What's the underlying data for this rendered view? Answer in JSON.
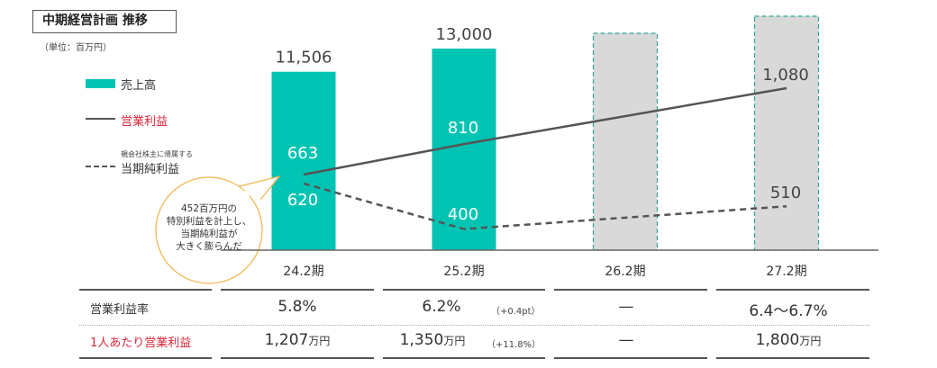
{
  "header": {
    "title": "中期経営計画 推移",
    "unit": "（単位：百万円）"
  },
  "legend": {
    "sales": "売上高",
    "operating_profit": "営業利益",
    "net_profit_prefix": "親会社株主に帰属する",
    "net_profit": "当期純利益"
  },
  "callout": {
    "lines": [
      "452百万円の",
      "特別利益を計上し、",
      "当期純利益が",
      "大きく膨らんだ"
    ]
  },
  "colors": {
    "bar": "#00c4b3",
    "plan_bar": "#d9d9d9",
    "plan_border": "#2aa89a",
    "line": "#555555",
    "accent_red": "#d9263a",
    "callout_border": "#f0b44c"
  },
  "chart_data": {
    "type": "bar",
    "title": "中期経営計画 推移",
    "ylabel": "百万円",
    "categories": [
      "24.2期",
      "25.2期",
      "26.2期",
      "27.2期"
    ],
    "series": [
      {
        "name": "売上高",
        "type": "bar",
        "values": [
          11506,
          13000,
          null,
          null
        ],
        "labels": [
          "11,506",
          "13,000",
          "",
          ""
        ]
      },
      {
        "name": "営業利益",
        "type": "line",
        "values": [
          663,
          810,
          null,
          1080
        ],
        "labels": [
          "663",
          "810",
          "",
          "1,080"
        ]
      },
      {
        "name": "親会社株主に帰属する当期純利益",
        "type": "line-dashed",
        "values": [
          620,
          400,
          null,
          510
        ],
        "labels": [
          "620",
          "400",
          "",
          "510"
        ]
      }
    ],
    "plan_categories": [
      "26.2期",
      "27.2期"
    ]
  },
  "table": {
    "rows": [
      {
        "label": "営業利益率",
        "cells": [
          "5.8%",
          "6.2%",
          "—",
          "6.4～6.7%"
        ],
        "note": "（+0.4pt）"
      },
      {
        "label": "1人あたり営業利益",
        "cells": [
          "1,207",
          "1,350",
          "—",
          "1,800"
        ],
        "unit": "万円",
        "note": "（+11.8%）"
      }
    ]
  }
}
